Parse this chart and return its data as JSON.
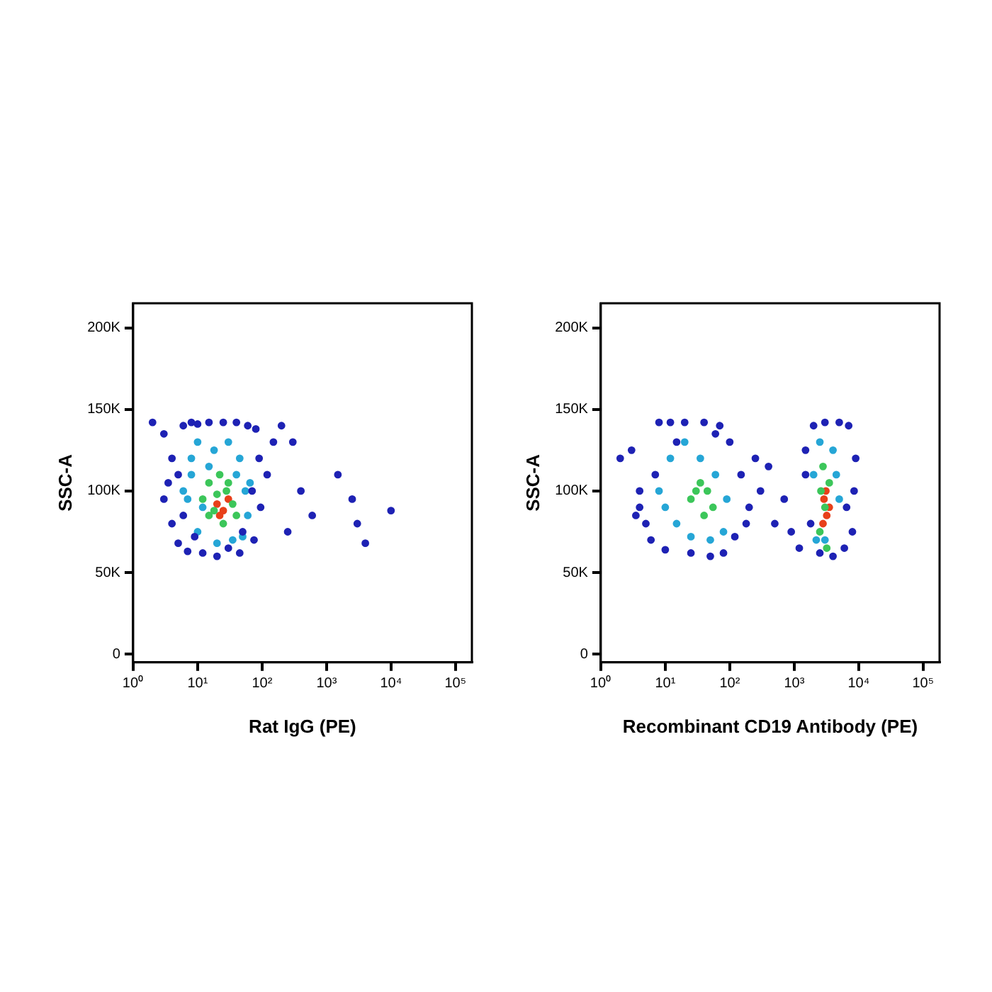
{
  "chart_data": [
    {
      "type": "scatter",
      "xlabel": "Rat IgG (PE)",
      "ylabel": "SSC-A",
      "log": "x",
      "grid": false,
      "legend": false,
      "marker": "circle",
      "xlim": [
        1,
        180000
      ],
      "xticks": [
        {
          "value": 1,
          "label": "10⁰"
        },
        {
          "value": 10,
          "label": "10¹"
        },
        {
          "value": 100,
          "label": "10²"
        },
        {
          "value": 1000,
          "label": "10³"
        },
        {
          "value": 10000,
          "label": "10⁴"
        },
        {
          "value": 100000,
          "label": "10⁵"
        }
      ],
      "ylim": [
        -5000,
        215000
      ],
      "yticks": [
        {
          "value": 0,
          "label": "0"
        },
        {
          "value": 50000,
          "label": "50K"
        },
        {
          "value": 100000,
          "label": "100K"
        },
        {
          "value": 150000,
          "label": "150K"
        },
        {
          "value": 200000,
          "label": "200K"
        }
      ],
      "series": [
        {
          "color": "#1e22b4",
          "x": [
            2,
            3,
            4,
            5,
            6,
            8,
            10,
            15,
            25,
            40,
            60,
            80,
            90,
            70,
            50,
            30,
            12,
            7,
            5,
            4,
            3,
            3.5,
            6,
            9,
            20,
            45,
            75,
            95,
            120,
            150,
            200,
            300,
            400,
            1500,
            2500,
            3000,
            4000,
            10000,
            600,
            250
          ],
          "values": [
            142000,
            135000,
            120000,
            110000,
            140000,
            142000,
            141000,
            142000,
            142000,
            142000,
            140000,
            138000,
            120000,
            100000,
            75000,
            65000,
            62000,
            63000,
            68000,
            80000,
            95000,
            105000,
            85000,
            72000,
            60000,
            62000,
            70000,
            90000,
            110000,
            130000,
            140000,
            130000,
            100000,
            110000,
            95000,
            80000,
            68000,
            88000,
            85000,
            75000
          ]
        },
        {
          "color": "#26a6d6",
          "x": [
            6,
            8,
            10,
            12,
            18,
            30,
            45,
            55,
            60,
            50,
            35,
            20,
            10,
            7,
            8,
            15,
            40,
            65
          ],
          "values": [
            100000,
            120000,
            130000,
            90000,
            125000,
            130000,
            120000,
            100000,
            85000,
            72000,
            70000,
            68000,
            75000,
            95000,
            110000,
            115000,
            110000,
            105000
          ]
        },
        {
          "color": "#3cc65a",
          "x": [
            12,
            15,
            18,
            22,
            28,
            35,
            40,
            25,
            15,
            20,
            30
          ],
          "values": [
            95000,
            105000,
            88000,
            110000,
            100000,
            92000,
            85000,
            80000,
            85000,
            98000,
            105000
          ]
        },
        {
          "color": "#e8401a",
          "x": [
            20,
            25,
            30,
            22
          ],
          "values": [
            92000,
            88000,
            95000,
            85000
          ]
        }
      ]
    },
    {
      "type": "scatter",
      "xlabel": "Recombinant CD19 Antibody (PE)",
      "ylabel": "SSC-A",
      "log": "x",
      "grid": false,
      "legend": false,
      "marker": "circle",
      "xlim": [
        1,
        180000
      ],
      "xticks": [
        {
          "value": 1,
          "label": "10⁰"
        },
        {
          "value": 10,
          "label": "10¹"
        },
        {
          "value": 100,
          "label": "10²"
        },
        {
          "value": 1000,
          "label": "10³"
        },
        {
          "value": 10000,
          "label": "10⁴"
        },
        {
          "value": 100000,
          "label": "10⁵"
        }
      ],
      "ylim": [
        -5000,
        215000
      ],
      "yticks": [
        {
          "value": 0,
          "label": "0"
        },
        {
          "value": 50000,
          "label": "50K"
        },
        {
          "value": 100000,
          "label": "100K"
        },
        {
          "value": 150000,
          "label": "150K"
        },
        {
          "value": 200000,
          "label": "200K"
        }
      ],
      "series": [
        {
          "color": "#1e22b4",
          "x": [
            2,
            3,
            4,
            5,
            8,
            12,
            20,
            40,
            70,
            100,
            150,
            200,
            120,
            80,
            50,
            25,
            10,
            6,
            4,
            3.5,
            7,
            15,
            60,
            180,
            250,
            300,
            400,
            500,
            700,
            900,
            1200,
            1500,
            2000,
            3000,
            5000,
            7000,
            9000,
            8000,
            6000,
            4000,
            2500,
            1800,
            1500,
            8500,
            6500
          ],
          "values": [
            120000,
            125000,
            90000,
            80000,
            142000,
            142000,
            142000,
            142000,
            140000,
            130000,
            110000,
            90000,
            72000,
            62000,
            60000,
            62000,
            64000,
            70000,
            100000,
            85000,
            110000,
            130000,
            135000,
            80000,
            120000,
            100000,
            115000,
            80000,
            95000,
            75000,
            65000,
            110000,
            140000,
            142000,
            142000,
            140000,
            120000,
            75000,
            65000,
            60000,
            62000,
            80000,
            125000,
            100000,
            90000
          ]
        },
        {
          "color": "#26a6d6",
          "x": [
            8,
            12,
            20,
            35,
            60,
            90,
            80,
            50,
            25,
            15,
            10,
            2000,
            2500,
            4000,
            5000,
            3000,
            2200,
            4500
          ],
          "values": [
            100000,
            120000,
            130000,
            120000,
            110000,
            95000,
            75000,
            70000,
            72000,
            80000,
            90000,
            110000,
            130000,
            125000,
            95000,
            70000,
            70000,
            110000
          ]
        },
        {
          "color": "#3cc65a",
          "x": [
            25,
            35,
            45,
            55,
            40,
            30,
            2500,
            3000,
            3500,
            2800,
            3200,
            2600
          ],
          "values": [
            95000,
            105000,
            100000,
            90000,
            85000,
            100000,
            75000,
            90000,
            105000,
            115000,
            65000,
            100000
          ]
        },
        {
          "color": "#e8401a",
          "x": [
            2800,
            3500,
            3200,
            2900,
            3100
          ],
          "values": [
            80000,
            90000,
            85000,
            95000,
            100000
          ]
        }
      ]
    }
  ]
}
